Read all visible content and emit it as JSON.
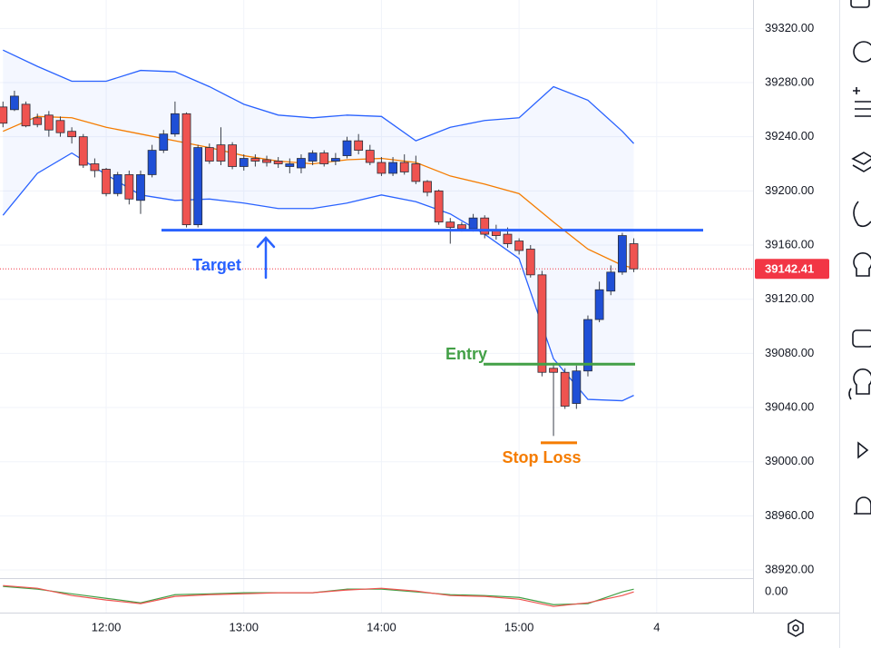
{
  "chart_data": {
    "type": "candlestick",
    "x": [
      675,
      680,
      685,
      690,
      695,
      700,
      705,
      710,
      715,
      720,
      725,
      730,
      735,
      740,
      745,
      750,
      755,
      760,
      765,
      770,
      775,
      780,
      785,
      790,
      795,
      800,
      805,
      810,
      815,
      820,
      825,
      830,
      835,
      840,
      845,
      850,
      855,
      860,
      865,
      870,
      875,
      880,
      885,
      890,
      895,
      900,
      905,
      910,
      915,
      920,
      925,
      930,
      935,
      940,
      945,
      950
    ],
    "open": [
      39262,
      39260,
      39264,
      39254,
      39256,
      39252,
      39244,
      39240,
      39220,
      39216,
      39198,
      39212,
      39193,
      39212,
      39230,
      39242,
      39257,
      39175,
      39232,
      39234,
      39234,
      39218,
      39224,
      39223,
      39222,
      39218,
      39217,
      39222,
      39228,
      39222,
      39226,
      39237,
      39230,
      39221,
      39213,
      39221,
      39220,
      39207,
      39200,
      39177,
      39175,
      39172,
      39180,
      39171,
      39168,
      39163,
      39157,
      39138,
      39069,
      39066,
      39043,
      39067,
      39105,
      39126,
      39140,
      39161
    ],
    "high": [
      39266,
      39274,
      39266,
      39257,
      39259,
      39255,
      39247,
      39242,
      39224,
      39217,
      39214,
      39215,
      39215,
      39234,
      39245,
      39266,
      39258,
      39234,
      39235,
      39247,
      39236,
      39227,
      39227,
      39226,
      39225,
      39224,
      39227,
      39230,
      39230,
      39228,
      39240,
      39242,
      39234,
      39225,
      39225,
      39227,
      39226,
      39208,
      39201,
      39180,
      39177,
      39183,
      39182,
      39175,
      39173,
      39165,
      39160,
      39141,
      39073,
      39069,
      39071,
      39108,
      39133,
      39145,
      39169,
      39165
    ],
    "low": [
      39247,
      39259,
      39247,
      39247,
      39240,
      39240,
      39235,
      39217,
      39210,
      39196,
      39196,
      39190,
      39183,
      39210,
      39228,
      39240,
      39173,
      39173,
      39220,
      39219,
      39216,
      39215,
      39218,
      39218,
      39217,
      39213,
      39213,
      39219,
      39218,
      39219,
      39224,
      39227,
      39219,
      39211,
      39211,
      39212,
      39205,
      39196,
      39175,
      39161,
      39170,
      39170,
      39165,
      39164,
      39158,
      39153,
      39136,
      39063,
      39019,
      39039,
      39039,
      39063,
      39103,
      39123,
      39138,
      39140
    ],
    "close": [
      39250,
      39270,
      39248,
      39249,
      39245,
      39243,
      39240,
      39219,
      39215,
      39198,
      39212,
      39194,
      39212,
      39230,
      39242,
      39257,
      39175,
      39232,
      39222,
      39222,
      39218,
      39224,
      39222,
      39221,
      39220,
      39220,
      39224,
      39228,
      39220,
      39224,
      39237,
      39230,
      39221,
      39213,
      39221,
      39214,
      39207,
      39199,
      39177,
      39173,
      39172,
      39180,
      39168,
      39167,
      39161,
      39156,
      39138,
      39066,
      39066,
      39041,
      39067,
      39105,
      39127,
      39140,
      39167,
      39142.41
    ],
    "up_color": "#1f4fd6",
    "down_color": "#ef5350",
    "xlim": [
      673.7,
      1002
    ],
    "xticks": [
      {
        "value": 720,
        "label": "12:00"
      },
      {
        "value": 780,
        "label": "13:00"
      },
      {
        "value": 840,
        "label": "14:00"
      },
      {
        "value": 900,
        "label": "15:00"
      },
      {
        "value": 960,
        "label": "4"
      }
    ],
    "ylim": [
      38914,
      39341
    ],
    "yticks": [
      {
        "value": 38920,
        "label": "38920.00"
      },
      {
        "value": 38960,
        "label": "38960.00"
      },
      {
        "value": 39000,
        "label": "39000.00"
      },
      {
        "value": 39040,
        "label": "39040.00"
      },
      {
        "value": 39080,
        "label": "39080.00"
      },
      {
        "value": 39120,
        "label": "39120.00"
      },
      {
        "value": 39160,
        "label": "39160.00"
      },
      {
        "value": 39200,
        "label": "39200.00"
      },
      {
        "value": 39240,
        "label": "39240.00"
      },
      {
        "value": 39280,
        "label": "39280.00"
      },
      {
        "value": 39320,
        "label": "39320.00"
      }
    ],
    "grid": true,
    "last_price": 39142.41,
    "last_price_color": "#f23645",
    "bands": {
      "x": [
        675,
        690,
        705,
        720,
        735,
        750,
        765,
        780,
        795,
        810,
        825,
        840,
        855,
        870,
        885,
        900,
        915,
        930,
        945,
        950
      ],
      "fill": "#2962ff",
      "series": [
        {
          "color": "#2962ff",
          "values": [
            39304,
            39292,
            39281,
            39281,
            39289,
            39288,
            39277,
            39264,
            39256,
            39254,
            39256,
            39255,
            39237,
            39247,
            39252,
            39254,
            39277,
            39267,
            39244,
            39235
          ]
        },
        {
          "color": "#f57c00",
          "values": [
            39244,
            39255,
            39254,
            39247,
            39242,
            39237,
            39232,
            39226,
            39222,
            39220,
            39223,
            39224,
            39221,
            39211,
            39205,
            39198,
            39177,
            39157,
            39145,
            39143
          ]
        },
        {
          "color": "#2962ff",
          "values": [
            39182,
            39213,
            39228,
            39212,
            39197,
            39193,
            39194,
            39191,
            39187,
            39187,
            39191,
            39197,
            39192,
            39183,
            39168,
            39150,
            39076,
            39046,
            39045,
            39049
          ]
        }
      ]
    },
    "annotations": [
      {
        "text": "Target",
        "value": 39171,
        "color": "#2962ff"
      },
      {
        "text": "Entry",
        "value": 39072,
        "color": "#43a047"
      },
      {
        "text": "Stop Loss",
        "value": 39014,
        "color": "#f57c00"
      }
    ],
    "oscillator": {
      "ylim": [
        -12,
        8
      ],
      "yticks": [
        {
          "value": 0,
          "label": "0.00"
        }
      ],
      "x": [
        675,
        690,
        705,
        720,
        735,
        750,
        765,
        780,
        795,
        810,
        825,
        840,
        855,
        870,
        885,
        900,
        915,
        930,
        945,
        950
      ],
      "series": [
        {
          "color": "#43a047",
          "values": [
            3.2,
            1.6,
            -1.1,
            -3.7,
            -6.3,
            -1.6,
            -1.1,
            -0.5,
            -0.5,
            -0.5,
            1.6,
            1.6,
            0,
            -1.6,
            -2.1,
            -3.2,
            -7.4,
            -6.8,
            0,
            1.6
          ]
        },
        {
          "color": "#ef5350",
          "values": [
            3.7,
            2.1,
            -2.1,
            -4.7,
            -6.8,
            -2.6,
            -1.6,
            -1.1,
            -0.5,
            -0.5,
            1.1,
            2.1,
            0.5,
            -2.1,
            -2.6,
            -4.2,
            -8.4,
            -6.3,
            -2.1,
            0
          ]
        }
      ]
    }
  }
}
